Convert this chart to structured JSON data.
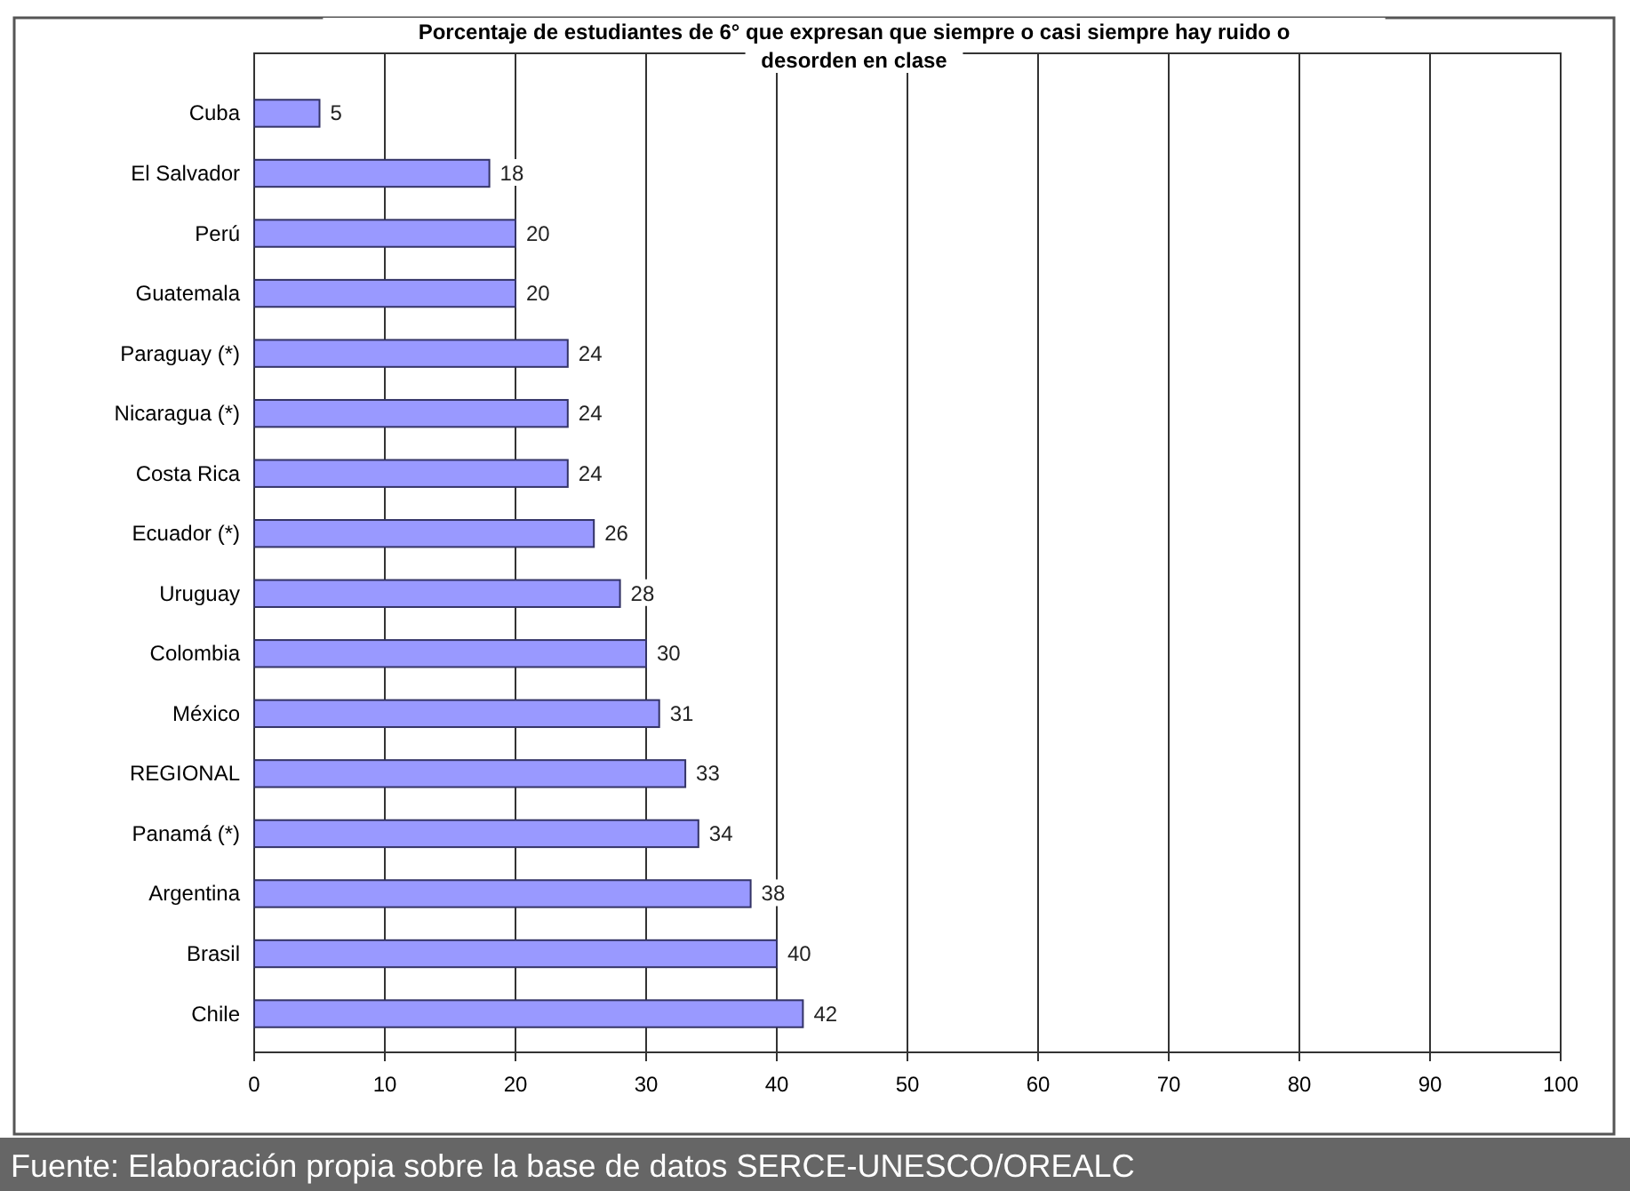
{
  "chart_data": {
    "type": "bar",
    "orientation": "horizontal",
    "title": "Porcentaje de estudiantes de 6° que expresan que siempre o casi siempre hay ruido o desorden en clase",
    "categories": [
      "Cuba",
      "El Salvador",
      "Perú",
      "Guatemala",
      "Paraguay (*)",
      "Nicaragua  (*)",
      "Costa Rica",
      "Ecuador (*)",
      "Uruguay",
      "Colombia",
      "México",
      "REGIONAL",
      "Panamá (*)",
      "Argentina",
      "Brasil",
      "Chile"
    ],
    "values": [
      5,
      18,
      20,
      20,
      24,
      24,
      24,
      26,
      28,
      30,
      31,
      33,
      34,
      38,
      40,
      42
    ],
    "color": "#9999ff",
    "xlim": [
      0,
      100
    ],
    "xticks": [
      0,
      10,
      20,
      30,
      40,
      50,
      60,
      70,
      80,
      90,
      100
    ],
    "grid": "x",
    "data_labels": true,
    "annotations": [
      "Fuente: Elaboración propia sobre la base de datos SERCE-UNESCO/OREALC"
    ]
  }
}
